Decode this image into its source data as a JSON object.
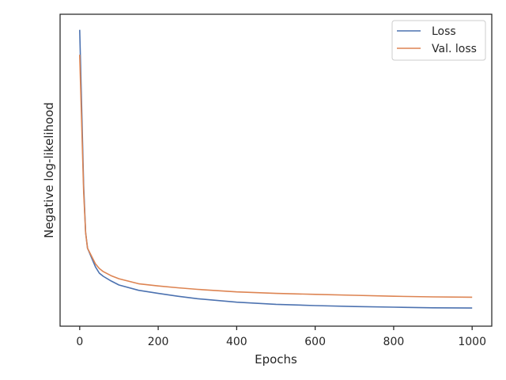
{
  "chart_data": {
    "type": "line",
    "title": "",
    "xlabel": "Epochs",
    "ylabel": "Negative log-likelihood",
    "xlim": [
      -50,
      1050
    ],
    "ylim": [
      0,
      100
    ],
    "xticks": [
      0,
      200,
      400,
      600,
      800,
      1000
    ],
    "y_tick_labels_shown": false,
    "grid": false,
    "legend_position": "top-right",
    "series": [
      {
        "name": "Loss",
        "color": "#4c72b0",
        "x": [
          0,
          5,
          10,
          15,
          20,
          30,
          40,
          50,
          60,
          80,
          100,
          150,
          200,
          250,
          300,
          400,
          500,
          600,
          700,
          800,
          900,
          1000
        ],
        "y": [
          95.0,
          70.0,
          45.0,
          30.0,
          25.0,
          22.0,
          19.0,
          17.0,
          16.0,
          14.5,
          13.2,
          11.5,
          10.5,
          9.6,
          8.8,
          7.7,
          7.0,
          6.6,
          6.3,
          6.1,
          5.9,
          5.8
        ]
      },
      {
        "name": "Val. loss",
        "color": "#dd8452",
        "x": [
          0,
          5,
          10,
          15,
          20,
          30,
          40,
          50,
          60,
          80,
          100,
          150,
          200,
          250,
          300,
          400,
          500,
          600,
          700,
          800,
          900,
          1000
        ],
        "y": [
          87.0,
          65.0,
          43.0,
          30.0,
          25.0,
          22.5,
          20.0,
          18.5,
          17.5,
          16.2,
          15.2,
          13.6,
          12.9,
          12.3,
          11.8,
          11.0,
          10.5,
          10.2,
          9.9,
          9.6,
          9.4,
          9.3
        ]
      }
    ]
  }
}
